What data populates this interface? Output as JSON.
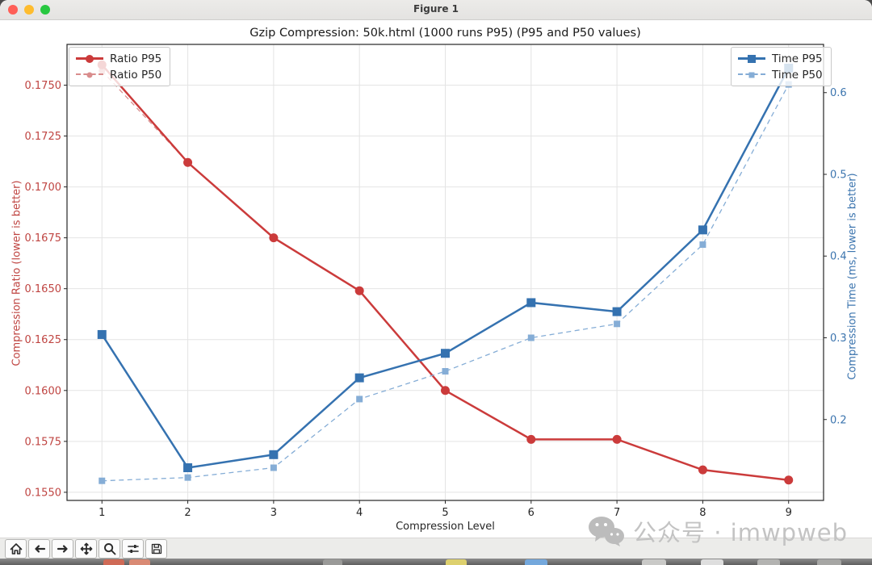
{
  "window": {
    "title": "Figure 1",
    "traffic_lights": [
      "#ff5f57",
      "#febc2e",
      "#28c840"
    ]
  },
  "chart_data": {
    "type": "line",
    "title": "Gzip Compression: 50k.html (1000 runs P95) (P95 and P50 values)",
    "xlabel": "Compression Level",
    "ylabel_left": "Compression Ratio (lower is better)",
    "ylabel_right": "Compression Time (ms, lower is better)",
    "x": [
      1,
      2,
      3,
      4,
      5,
      6,
      7,
      8,
      9
    ],
    "x_ticks": [
      1,
      2,
      3,
      4,
      5,
      6,
      7,
      8,
      9
    ],
    "xlim": [
      0.593,
      9.407
    ],
    "y_left_ticks": [
      0.155,
      0.1575,
      0.16,
      0.1625,
      0.165,
      0.1675,
      0.17,
      0.1725,
      0.175
    ],
    "y_right_ticks": [
      0.2,
      0.3,
      0.4,
      0.5,
      0.6
    ],
    "ylim_left": [
      0.1546,
      0.177
    ],
    "ylim_right": [
      0.101,
      0.659
    ],
    "decimals_left": 4,
    "decimals_right": 1,
    "grid": true,
    "tick_color_left": "#bf4441",
    "tick_color_right": "#3b74ae",
    "series": [
      {
        "name": "Ratio P95",
        "axis": "left",
        "color": "#cb3b3b",
        "style": "solid",
        "marker": "circle",
        "lw": 2.5,
        "ms": 11,
        "values": [
          0.176,
          0.1712,
          0.1675,
          0.1649,
          0.16,
          0.1576,
          0.1576,
          0.1561,
          0.1556
        ]
      },
      {
        "name": "Ratio P50",
        "axis": "left",
        "color": "#d98d8d",
        "style": "dashed",
        "marker": "circle",
        "lw": 1.3,
        "ms": 8,
        "values": [
          0.1757,
          0.1712,
          0.1675,
          0.1649,
          0.16,
          0.1576,
          0.1576,
          0.1561,
          0.1556
        ]
      },
      {
        "name": "Time P95",
        "axis": "right",
        "color": "#3572b0",
        "style": "solid",
        "marker": "square",
        "lw": 2.5,
        "ms": 11,
        "values": [
          0.304,
          0.141,
          0.157,
          0.251,
          0.281,
          0.343,
          0.332,
          0.432,
          0.63
        ]
      },
      {
        "name": "Time P50",
        "axis": "right",
        "color": "#85add6",
        "style": "dashed",
        "marker": "square",
        "lw": 1.3,
        "ms": 8,
        "values": [
          0.125,
          0.129,
          0.141,
          0.225,
          0.259,
          0.3,
          0.317,
          0.414,
          0.61
        ]
      }
    ],
    "draw_order": [
      "Ratio P50",
      "Ratio P95",
      "Time P50",
      "Time P95"
    ],
    "legend_left": [
      "Ratio P95",
      "Ratio P50"
    ],
    "legend_right": [
      "Time P95",
      "Time P50"
    ],
    "legend_position_left": "upper left",
    "legend_position_right": "upper right"
  },
  "toolbar": {
    "buttons": [
      "home",
      "back",
      "forward",
      "pan",
      "zoom",
      "configure-subplots",
      "save"
    ]
  },
  "watermark": {
    "icon": "wechat-icon",
    "text": "公众号 · imwpweb"
  }
}
